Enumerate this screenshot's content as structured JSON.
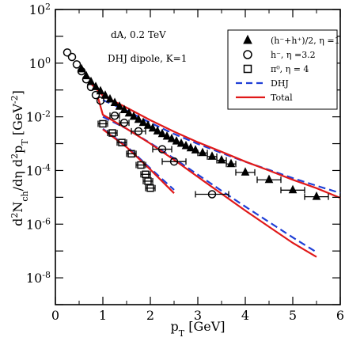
{
  "chart_data": {
    "type": "scatter",
    "xlabel": "p_T [GeV]",
    "ylabel": "d²N_ch/dη d²p_T [GeV⁻²]",
    "xlim": [
      0,
      6
    ],
    "ylim": [
      1e-09,
      100
    ],
    "yscale": "log",
    "grid": false,
    "legend_position": "top-right",
    "x_ticks": [
      0,
      1,
      2,
      3,
      4,
      5,
      6
    ],
    "y_ticks": [
      {
        "value": 100,
        "mantissa": "10",
        "exp": "2"
      },
      {
        "value": 1,
        "mantissa": "10",
        "exp": "0"
      },
      {
        "value": 0.01,
        "mantissa": "10",
        "exp": "-2"
      },
      {
        "value": 0.0001,
        "mantissa": "10",
        "exp": "-4"
      },
      {
        "value": 1e-06,
        "mantissa": "10",
        "exp": "-6"
      },
      {
        "value": 1e-08,
        "mantissa": "10",
        "exp": "-8"
      }
    ],
    "annotations": [
      "dA, 0.2 TeV",
      "DHJ dipole, K=1"
    ],
    "legend": [
      {
        "label": "(h⁻+h⁺)/2, η =1",
        "marker": "triangle"
      },
      {
        "label": "h⁻, η =3.2",
        "marker": "circle"
      },
      {
        "label": "π⁰, η = 4",
        "marker": "square"
      },
      {
        "label": "DHJ",
        "line": "dashed",
        "color": "#1f3fd6"
      },
      {
        "label": "Total",
        "line": "solid",
        "color": "#e01818"
      }
    ],
    "series": [
      {
        "name": "(h⁻+h⁺)/2, η =1",
        "marker": "triangle",
        "points": [
          [
            0.55,
            0.6,
            0
          ],
          [
            0.65,
            0.33,
            0
          ],
          [
            0.75,
            0.2,
            0
          ],
          [
            0.85,
            0.13,
            0
          ],
          [
            0.95,
            0.09,
            0
          ],
          [
            1.05,
            0.062,
            0
          ],
          [
            1.15,
            0.045,
            0
          ],
          [
            1.25,
            0.033,
            0
          ],
          [
            1.35,
            0.024,
            0
          ],
          [
            1.45,
            0.018,
            0
          ],
          [
            1.55,
            0.0135,
            0
          ],
          [
            1.65,
            0.0102,
            0
          ],
          [
            1.75,
            0.0078,
            0
          ],
          [
            1.85,
            0.006,
            0
          ],
          [
            1.95,
            0.0047,
            0
          ],
          [
            2.05,
            0.0037,
            0
          ],
          [
            2.15,
            0.0029,
            0
          ],
          [
            2.25,
            0.0023,
            0
          ],
          [
            2.35,
            0.00185,
            0
          ],
          [
            2.45,
            0.0015,
            0
          ],
          [
            2.55,
            0.00122,
            0
          ],
          [
            2.65,
            0.001,
            0
          ],
          [
            2.75,
            0.00082,
            0
          ],
          [
            2.85,
            0.00068,
            0
          ],
          [
            2.95,
            0.00057,
            0
          ],
          [
            3.1,
            0.00045,
            0.1
          ],
          [
            3.3,
            0.00033,
            0.1
          ],
          [
            3.5,
            0.00024,
            0.1
          ],
          [
            3.7,
            0.000175,
            0.1
          ],
          [
            4.0,
            8.5e-05,
            0.2
          ],
          [
            4.5,
            4.5e-05,
            0.25
          ],
          [
            5.0,
            1.85e-05,
            0.25
          ],
          [
            5.5,
            1.05e-05,
            0.25
          ]
        ]
      },
      {
        "name": "h⁻, η =3.2",
        "marker": "circle",
        "points": [
          [
            0.25,
            2.5,
            0
          ],
          [
            0.35,
            1.7,
            0
          ],
          [
            0.45,
            0.9,
            0
          ],
          [
            0.55,
            0.5,
            0
          ],
          [
            0.65,
            0.25,
            0
          ],
          [
            0.75,
            0.13,
            0
          ],
          [
            0.85,
            0.065,
            0
          ],
          [
            0.95,
            0.04,
            0
          ],
          [
            1.25,
            0.011,
            0.1
          ],
          [
            1.45,
            0.006,
            0.1
          ],
          [
            1.75,
            0.0029,
            0.15
          ],
          [
            2.25,
            0.00062,
            0.2
          ],
          [
            2.5,
            0.000215,
            0.25
          ],
          [
            3.3,
            1.3e-05,
            0.35
          ]
        ]
      },
      {
        "name": "π⁰, η = 4",
        "marker": "square",
        "points": [
          [
            1.0,
            0.0055,
            0.1
          ],
          [
            1.2,
            0.0025,
            0.1
          ],
          [
            1.4,
            0.0011,
            0.1
          ],
          [
            1.6,
            0.00042,
            0.1
          ],
          [
            1.8,
            0.00016,
            0.1
          ],
          [
            1.9,
            7.2e-05,
            0.1
          ],
          [
            1.95,
            4e-05,
            0.1
          ],
          [
            2.0,
            2.2e-05,
            0.1
          ]
        ]
      }
    ],
    "curves": [
      {
        "name": "DHJ",
        "group": "eta1",
        "style": "dashed",
        "color": "#1f3fd6",
        "x": [
          1.0,
          1.5,
          2.0,
          2.5,
          3.0,
          3.5,
          4.0,
          4.5,
          5.0,
          5.5,
          6.0
        ],
        "y": [
          0.042,
          0.017,
          0.006,
          0.0023,
          0.00098,
          0.00045,
          0.00021,
          0.000105,
          5.2e-05,
          2.7e-05,
          1.45e-05
        ]
      },
      {
        "name": "Total",
        "group": "eta1",
        "style": "solid",
        "color": "#e01818",
        "x": [
          0.7,
          1.0,
          1.5,
          2.0,
          2.5,
          3.0,
          3.5,
          4.0,
          4.5,
          5.0,
          5.5,
          6.0
        ],
        "y": [
          0.21,
          0.062,
          0.022,
          0.0075,
          0.0028,
          0.00113,
          0.0005,
          0.000215,
          0.0001,
          4.5e-05,
          2.2e-05,
          9.5e-06
        ]
      },
      {
        "name": "DHJ",
        "group": "eta32",
        "style": "dashed",
        "color": "#1f3fd6",
        "x": [
          1.0,
          1.5,
          2.0,
          2.5,
          3.0,
          3.5,
          4.0,
          4.5,
          5.0,
          5.5
        ],
        "y": [
          0.01,
          0.0036,
          0.00105,
          0.00028,
          7e-05,
          1.75e-05,
          4.5e-06,
          1.2e-06,
          3.2e-07,
          9e-08
        ]
      },
      {
        "name": "Total",
        "group": "eta32",
        "style": "solid",
        "color": "#e01818",
        "x": [
          0.9,
          1.0,
          1.5,
          2.0,
          2.5,
          3.0,
          3.5,
          4.0,
          4.5,
          5.0,
          5.5
        ],
        "y": [
          0.05,
          0.012,
          0.0036,
          0.001,
          0.00025,
          5.8e-05,
          1.35e-05,
          3.2e-06,
          8e-07,
          2e-07,
          6e-08
        ]
      },
      {
        "name": "DHJ",
        "group": "eta4",
        "style": "dashed",
        "color": "#1f3fd6",
        "x": [
          1.0,
          1.5,
          2.0,
          2.5
        ],
        "y": [
          0.0036,
          0.0008,
          0.00012,
          1.9e-05
        ]
      },
      {
        "name": "Total",
        "group": "eta4",
        "style": "solid",
        "color": "#e01818",
        "x": [
          1.0,
          1.5,
          2.0,
          2.5
        ],
        "y": [
          0.0034,
          0.00074,
          0.000108,
          1.42e-05
        ]
      }
    ]
  }
}
